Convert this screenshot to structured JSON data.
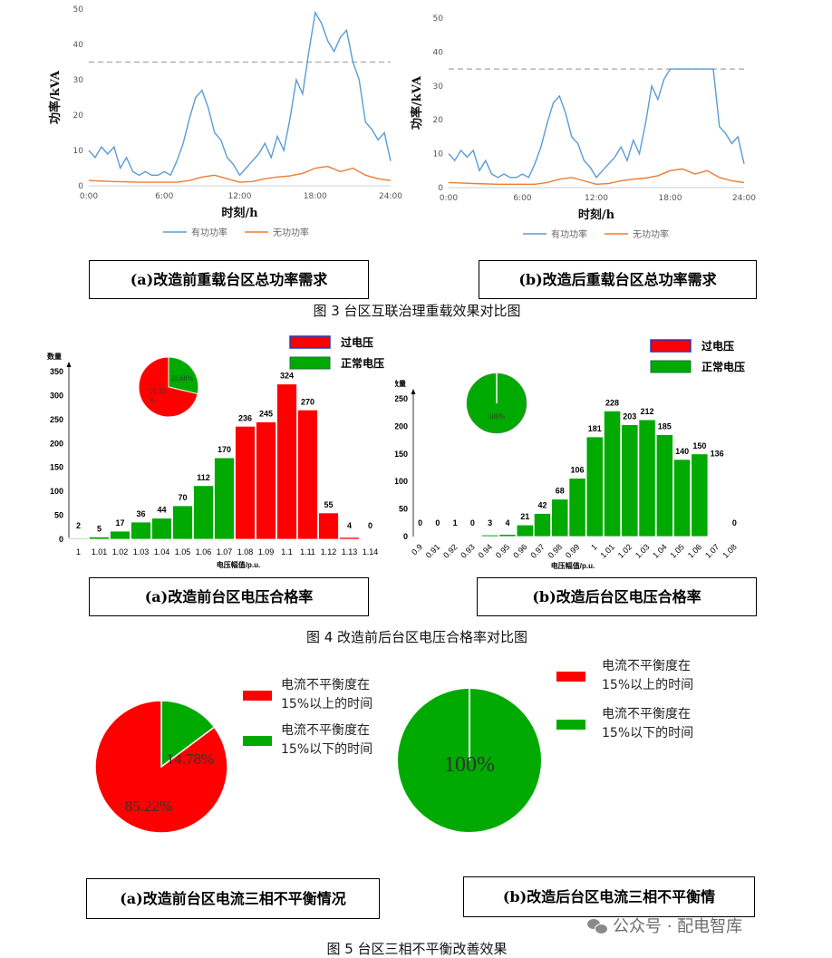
{
  "figure3": {
    "caption": "图 3  台区互联治理重载效果对比图",
    "panel_a_caption": "(a)改造前重载台区总功率需求",
    "panel_b_caption": "(b)改造后重载台区总功率需求"
  },
  "figure4": {
    "caption": "图 4  改造前后台区电压合格率对比图",
    "panel_a_caption": "(a)改造前台区电压合格率",
    "panel_b_caption": "(b)改造后台区电压合格率"
  },
  "figure5": {
    "caption": "图 5  台区三相不平衡改善效果",
    "panel_a_caption": "(a)改造前台区电流三相不平衡情况",
    "panel_b_caption": "(b)改造后台区电流三相不平衡情"
  },
  "watermark": "公众号 · 配电智库",
  "colors": {
    "active": "#5b9bd5",
    "reactive": "#ed7d31",
    "over_voltage": "#ff0000",
    "normal_voltage": "#00aa00",
    "pie_red": "#ff0000",
    "pie_green": "#00aa00"
  },
  "chart_data": [
    {
      "id": "fig3a",
      "type": "line",
      "xlabel": "时刻/h",
      "ylabel": "功率/kVA",
      "ylim": [
        0,
        50
      ],
      "yticks": [
        0,
        10,
        20,
        30,
        40,
        50
      ],
      "xticks": [
        "0:00",
        "6:00",
        "12:00",
        "18:00",
        "24:00"
      ],
      "xlim": [
        0,
        24
      ],
      "reference_line": 35,
      "series": [
        {
          "name": "有功功率",
          "x": [
            0,
            0.5,
            1,
            1.5,
            2,
            2.5,
            3,
            3.5,
            4,
            4.5,
            5,
            5.5,
            6,
            6.5,
            7,
            7.5,
            8,
            8.5,
            9,
            9.5,
            10,
            10.5,
            11,
            11.5,
            12,
            12.5,
            13,
            13.5,
            14,
            14.5,
            15,
            15.5,
            16,
            16.5,
            17,
            17.5,
            18,
            18.5,
            19,
            19.5,
            20,
            20.5,
            21,
            21.5,
            22,
            22.5,
            23,
            23.5,
            24
          ],
          "values": [
            10,
            8,
            11,
            9,
            11,
            5,
            8,
            4,
            3,
            4,
            3,
            3,
            4,
            3,
            7,
            12,
            19,
            25,
            27,
            22,
            15,
            13,
            8,
            6,
            3,
            5,
            7,
            9,
            12,
            8,
            14,
            10,
            19,
            30,
            26,
            38,
            49,
            46,
            41,
            38,
            42,
            44,
            35,
            30,
            18,
            16,
            13,
            15,
            7
          ]
        },
        {
          "name": "无功功率",
          "x": [
            0,
            2,
            4,
            6,
            7,
            8,
            9,
            10,
            11,
            12,
            13,
            14,
            15,
            16,
            17,
            18,
            19,
            20,
            21,
            22,
            23,
            24
          ],
          "values": [
            1.5,
            1.2,
            1,
            1,
            1,
            1.5,
            2.5,
            3,
            2,
            1,
            1.2,
            2,
            2.5,
            2.8,
            3.5,
            5,
            5.5,
            4,
            5,
            3,
            2,
            1.5
          ]
        }
      ]
    },
    {
      "id": "fig3b",
      "type": "line",
      "xlabel": "时刻/h",
      "ylabel": "功率/kVA",
      "ylim": [
        0,
        50
      ],
      "yticks": [
        0,
        10,
        20,
        30,
        40,
        50
      ],
      "xticks": [
        "0:00",
        "6:00",
        "12:00",
        "18:00",
        "24:00"
      ],
      "xlim": [
        0,
        24
      ],
      "reference_line": 35,
      "series": [
        {
          "name": "有功功率",
          "x": [
            0,
            0.5,
            1,
            1.5,
            2,
            2.5,
            3,
            3.5,
            4,
            4.5,
            5,
            5.5,
            6,
            6.5,
            7,
            7.5,
            8,
            8.5,
            9,
            9.5,
            10,
            10.5,
            11,
            11.5,
            12,
            12.5,
            13,
            13.5,
            14,
            14.5,
            15,
            15.5,
            16,
            16.5,
            17,
            17.5,
            18,
            19,
            20,
            21,
            21.5,
            22,
            22.5,
            23,
            23.5,
            24
          ],
          "values": [
            10,
            8,
            11,
            9,
            11,
            5,
            8,
            4,
            3,
            4,
            3,
            3,
            4,
            3,
            7,
            12,
            19,
            25,
            27,
            22,
            15,
            13,
            8,
            6,
            3,
            5,
            7,
            9,
            12,
            8,
            14,
            10,
            19,
            30,
            26,
            32,
            35,
            35,
            35,
            35,
            35,
            18,
            16,
            13,
            15,
            7
          ]
        },
        {
          "name": "无功功率",
          "x": [
            0,
            2,
            4,
            6,
            7,
            8,
            9,
            10,
            11,
            12,
            13,
            14,
            15,
            16,
            17,
            18,
            19,
            20,
            21,
            22,
            23,
            24
          ],
          "values": [
            1.5,
            1.2,
            1,
            1,
            1,
            1.5,
            2.5,
            3,
            2,
            1,
            1.2,
            2,
            2.5,
            2.8,
            3.5,
            5,
            5.5,
            4,
            5,
            3,
            2,
            1.5
          ]
        }
      ]
    },
    {
      "id": "fig4a",
      "type": "bar",
      "ylabel": "数量",
      "xlabel": "电压幅值/p.u.",
      "ylim": [
        0,
        350
      ],
      "yticks": [
        0,
        50,
        100,
        150,
        200,
        250,
        300,
        350
      ],
      "categories": [
        "1",
        "1.01",
        "1.02",
        "1.03",
        "1.04",
        "1.05",
        "1.06",
        "1.07",
        "1.08",
        "1.09",
        "1.1",
        "1.11",
        "1.12",
        "1.13",
        "1.14"
      ],
      "values": [
        2,
        5,
        17,
        36,
        44,
        70,
        112,
        170,
        236,
        245,
        324,
        270,
        55,
        4,
        0
      ],
      "bar_status": [
        "normal",
        "normal",
        "normal",
        "normal",
        "normal",
        "normal",
        "normal",
        "normal",
        "over",
        "over",
        "over",
        "over",
        "over",
        "over",
        "over"
      ],
      "legend": [
        "过电压",
        "正常电压"
      ],
      "inset_pie": {
        "labels": [
          "过电压",
          "正常电压"
        ],
        "values": [
          71.32,
          28.68
        ],
        "text": [
          "71.32\n%",
          "28.68%"
        ]
      }
    },
    {
      "id": "fig4b",
      "type": "bar",
      "ylabel": "数量",
      "xlabel": "电压幅值/p.u.",
      "ylim": [
        0,
        250
      ],
      "yticks": [
        0,
        50,
        100,
        150,
        200,
        250
      ],
      "categories": [
        "0.9",
        "0.91",
        "0.92",
        "0.93",
        "0.94",
        "0.95",
        "0.96",
        "0.97",
        "0.98",
        "0.99",
        "1",
        "1.01",
        "1.02",
        "1.03",
        "1.04",
        "1.05",
        "1.06",
        "1.07",
        "1.08"
      ],
      "values": [
        0,
        0,
        1,
        0,
        3,
        4,
        21,
        42,
        68,
        106,
        181,
        228,
        203,
        212,
        185,
        140,
        150,
        136,
        0
      ],
      "legend": [
        "过电压",
        "正常电压"
      ],
      "inset_pie": {
        "labels": [
          "正常电压"
        ],
        "values": [
          100
        ],
        "text": [
          "100%"
        ]
      }
    },
    {
      "id": "fig5a",
      "type": "pie",
      "labels": [
        "电流不平衡度在15%以上的时间",
        "电流不平衡度在15%以下的时间"
      ],
      "values": [
        85.22,
        14.78
      ],
      "text": [
        "85.22%",
        "14.78%"
      ]
    },
    {
      "id": "fig5b",
      "type": "pie",
      "labels": [
        "电流不平衡度在15%以上的时间",
        "电流不平衡度在15%以下的时间"
      ],
      "values": [
        0,
        100
      ],
      "text": [
        "100%"
      ]
    }
  ],
  "legend_texts": {
    "fig3_active": "有功功率",
    "fig3_reactive": "无功功率",
    "fig4_over": "过电压",
    "fig4_normal": "正常电压",
    "fig5_above_1": "电流不平衡度在",
    "fig5_above_2": "15%以上的时间",
    "fig5_below_1": "电流不平衡度在",
    "fig5_below_2": "15%以下的时间"
  }
}
